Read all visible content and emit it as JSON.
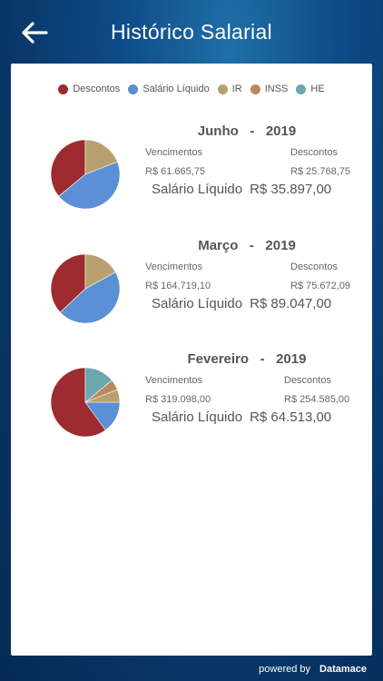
{
  "header": {
    "title": "Histórico Salarial"
  },
  "legend": [
    {
      "label": "Descontos",
      "color": "#9e2b2f"
    },
    {
      "label": "Salário Líquido",
      "color": "#5b8fd6"
    },
    {
      "label": "IR",
      "color": "#b8a06e"
    },
    {
      "label": "INSS",
      "color": "#b9895c"
    },
    {
      "label": "HE",
      "color": "#6aa7ae"
    }
  ],
  "labels": {
    "vencimentos": "Vencimentos",
    "descontos": "Descontos",
    "liquido": "Salário Líquido"
  },
  "entries": [
    {
      "month": "Junho",
      "sep": "-",
      "year": "2019",
      "vencimentos": "R$ 61.665,75",
      "descontos": "R$ 25.768,75",
      "liquido": "R$ 35.897,00",
      "slices": [
        {
          "series": "Descontos",
          "fraction": 0.36
        },
        {
          "series": "Salário Líquido",
          "fraction": 0.45
        },
        {
          "series": "IR",
          "fraction": 0.19
        }
      ]
    },
    {
      "month": "Março",
      "sep": "-",
      "year": "2019",
      "vencimentos": "R$ 164.719,10",
      "descontos": "R$ 75.672,09",
      "liquido": "R$ 89.047,00",
      "slices": [
        {
          "series": "Descontos",
          "fraction": 0.37
        },
        {
          "series": "Salário Líquido",
          "fraction": 0.46
        },
        {
          "series": "IR",
          "fraction": 0.17
        }
      ]
    },
    {
      "month": "Fevereiro",
      "sep": "-",
      "year": "2019",
      "vencimentos": "R$ 319.098,00",
      "descontos": "R$ 254.585,00",
      "liquido": "R$ 64.513,00",
      "slices": [
        {
          "series": "Descontos",
          "fraction": 0.6
        },
        {
          "series": "Salário Líquido",
          "fraction": 0.15
        },
        {
          "series": "IR",
          "fraction": 0.06
        },
        {
          "series": "INSS",
          "fraction": 0.05
        },
        {
          "series": "HE",
          "fraction": 0.14
        }
      ]
    }
  ],
  "footer": {
    "powered": "powered by",
    "brand": "Datamace"
  }
}
